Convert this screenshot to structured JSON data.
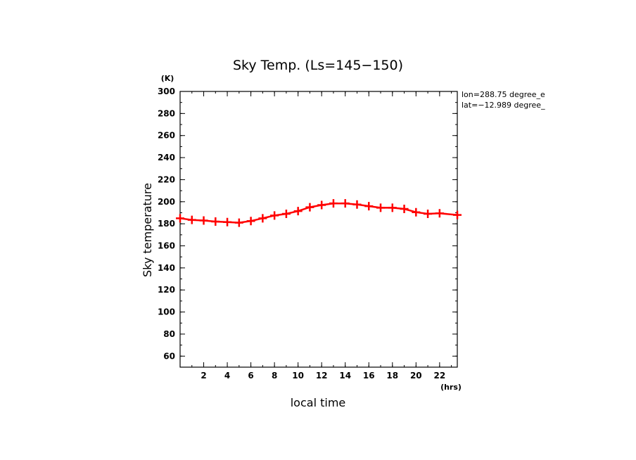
{
  "chart_data": {
    "type": "line",
    "title": "Sky Temp. (Ls=145−150)",
    "xlabel": "local time",
    "ylabel": "Sky temperature",
    "x_unit": "(hrs)",
    "y_unit": "(K)",
    "xlim": [
      0,
      23.5
    ],
    "ylim": [
      50,
      300
    ],
    "x_ticks": [
      2,
      4,
      6,
      8,
      10,
      12,
      14,
      16,
      18,
      20,
      22
    ],
    "y_ticks": [
      60,
      80,
      100,
      120,
      140,
      160,
      180,
      200,
      220,
      240,
      260,
      280,
      300
    ],
    "annotations": [
      "lon=288.75 degree_e",
      "lat=−12.989 degree_"
    ],
    "grid": false,
    "series": [
      {
        "color": "#ff0000",
        "marker": "plus",
        "x": [
          0,
          1,
          2,
          3,
          4,
          5,
          6,
          7,
          8,
          9,
          10,
          11,
          12,
          13,
          14,
          15,
          16,
          17,
          18,
          19,
          20,
          21,
          22,
          23.5
        ],
        "values": [
          185,
          183.5,
          183,
          182,
          181.5,
          181,
          182.5,
          185,
          187.5,
          189,
          191.5,
          195,
          197,
          198.5,
          198.5,
          197.5,
          196,
          194.5,
          194.5,
          193.5,
          190.5,
          189,
          189.5,
          188
        ]
      }
    ]
  }
}
